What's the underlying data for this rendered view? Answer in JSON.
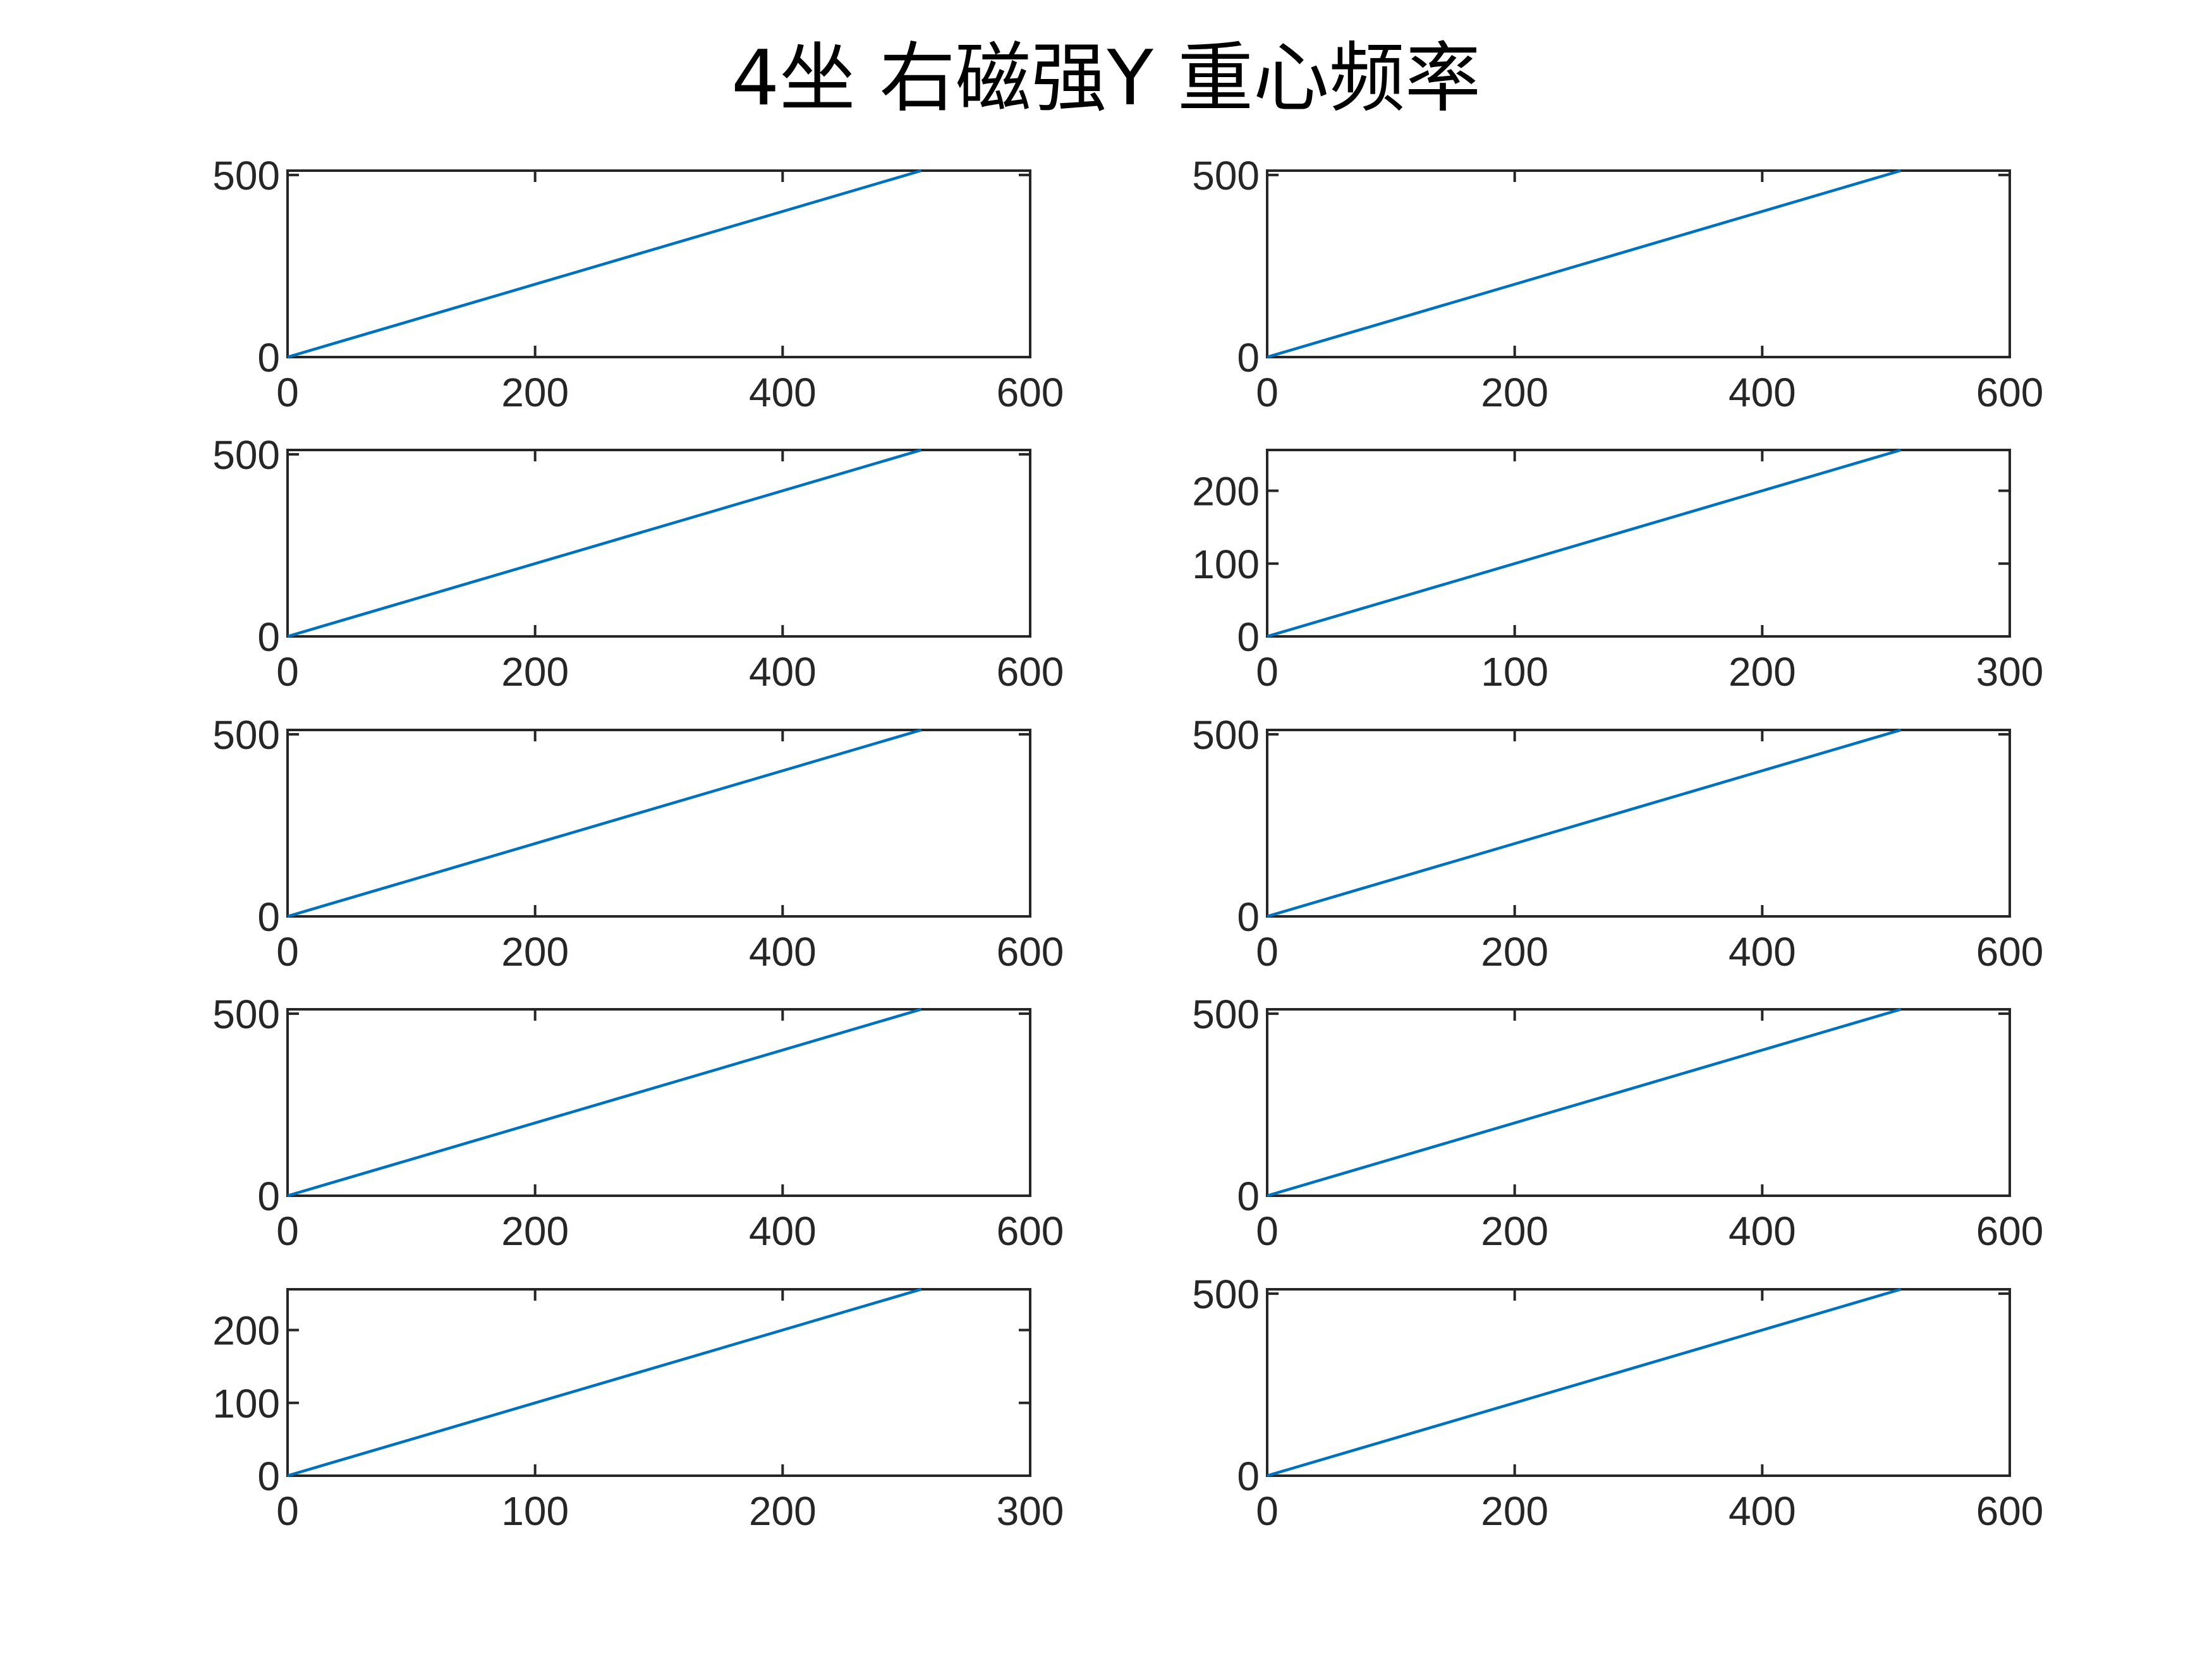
{
  "title": "4坐 右磁强Y 重心频率",
  "colors": {
    "line": "#0072BD",
    "axes": "#262626",
    "title": "#000000",
    "background": "#ffffff"
  },
  "chart_data": [
    {
      "type": "line",
      "position": "row 1, left",
      "xlim": [
        0,
        600
      ],
      "ylim": [
        0,
        512
      ],
      "xticks": [
        0,
        200,
        400,
        600
      ],
      "yticks": [
        0,
        500
      ],
      "grid": false,
      "series": [
        {
          "x": [
            0,
            512
          ],
          "y": [
            0,
            512
          ]
        }
      ]
    },
    {
      "type": "line",
      "position": "row 1, right",
      "xlim": [
        0,
        600
      ],
      "ylim": [
        0,
        512
      ],
      "xticks": [
        0,
        200,
        400,
        600
      ],
      "yticks": [
        0,
        500
      ],
      "grid": false,
      "series": [
        {
          "x": [
            0,
            512
          ],
          "y": [
            0,
            512
          ]
        }
      ]
    },
    {
      "type": "line",
      "position": "row 2, left",
      "xlim": [
        0,
        600
      ],
      "ylim": [
        0,
        512
      ],
      "xticks": [
        0,
        200,
        400,
        600
      ],
      "yticks": [
        0,
        500
      ],
      "grid": false,
      "series": [
        {
          "x": [
            0,
            512
          ],
          "y": [
            0,
            512
          ]
        }
      ]
    },
    {
      "type": "line",
      "position": "row 2, right",
      "xlim": [
        0,
        300
      ],
      "ylim": [
        0,
        256
      ],
      "xticks": [
        0,
        100,
        200,
        300
      ],
      "yticks": [
        0,
        100,
        200
      ],
      "grid": false,
      "series": [
        {
          "x": [
            0,
            256
          ],
          "y": [
            0,
            256
          ]
        }
      ]
    },
    {
      "type": "line",
      "position": "row 3, left",
      "xlim": [
        0,
        600
      ],
      "ylim": [
        0,
        512
      ],
      "xticks": [
        0,
        200,
        400,
        600
      ],
      "yticks": [
        0,
        500
      ],
      "grid": false,
      "series": [
        {
          "x": [
            0,
            512
          ],
          "y": [
            0,
            512
          ]
        }
      ]
    },
    {
      "type": "line",
      "position": "row 3, right",
      "xlim": [
        0,
        600
      ],
      "ylim": [
        0,
        512
      ],
      "xticks": [
        0,
        200,
        400,
        600
      ],
      "yticks": [
        0,
        500
      ],
      "grid": false,
      "series": [
        {
          "x": [
            0,
            512
          ],
          "y": [
            0,
            512
          ]
        }
      ]
    },
    {
      "type": "line",
      "position": "row 4, left",
      "xlim": [
        0,
        600
      ],
      "ylim": [
        0,
        512
      ],
      "xticks": [
        0,
        200,
        400,
        600
      ],
      "yticks": [
        0,
        500
      ],
      "grid": false,
      "series": [
        {
          "x": [
            0,
            512
          ],
          "y": [
            0,
            512
          ]
        }
      ]
    },
    {
      "type": "line",
      "position": "row 4, right",
      "xlim": [
        0,
        600
      ],
      "ylim": [
        0,
        512
      ],
      "xticks": [
        0,
        200,
        400,
        600
      ],
      "yticks": [
        0,
        500
      ],
      "grid": false,
      "series": [
        {
          "x": [
            0,
            512
          ],
          "y": [
            0,
            512
          ]
        }
      ]
    },
    {
      "type": "line",
      "position": "row 5, left",
      "xlim": [
        0,
        300
      ],
      "ylim": [
        0,
        256
      ],
      "xticks": [
        0,
        100,
        200,
        300
      ],
      "yticks": [
        0,
        100,
        200
      ],
      "grid": false,
      "series": [
        {
          "x": [
            0,
            256
          ],
          "y": [
            0,
            256
          ]
        }
      ]
    },
    {
      "type": "line",
      "position": "row 5, right",
      "xlim": [
        0,
        600
      ],
      "ylim": [
        0,
        512
      ],
      "xticks": [
        0,
        200,
        400,
        600
      ],
      "yticks": [
        0,
        500
      ],
      "grid": false,
      "series": [
        {
          "x": [
            0,
            512
          ],
          "y": [
            0,
            512
          ]
        }
      ]
    }
  ]
}
